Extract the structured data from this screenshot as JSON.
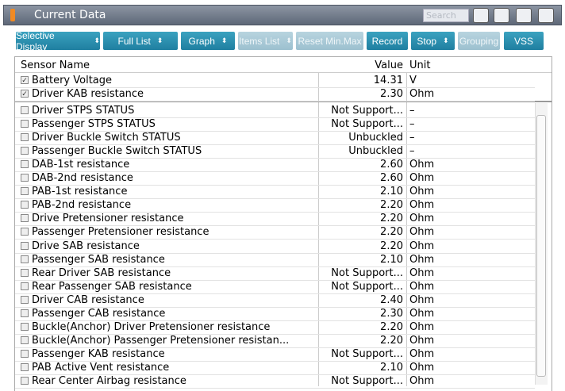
{
  "header": {
    "title": "Current Data",
    "search_placeholder": "Search"
  },
  "toolbar": [
    {
      "label": "Selective Display",
      "dropdown": true,
      "enabled": true
    },
    {
      "label": "Full List",
      "dropdown": true,
      "enabled": true
    },
    {
      "label": "Graph",
      "dropdown": true,
      "enabled": true
    },
    {
      "label": "Items List",
      "dropdown": true,
      "enabled": false
    },
    {
      "label": "Reset Min.Max",
      "dropdown": false,
      "enabled": false
    },
    {
      "label": "Record",
      "dropdown": false,
      "enabled": true
    },
    {
      "label": "Stop",
      "dropdown": true,
      "enabled": true
    },
    {
      "label": "Grouping",
      "dropdown": false,
      "enabled": false
    },
    {
      "label": "VSS",
      "dropdown": false,
      "enabled": true
    }
  ],
  "table": {
    "columns": [
      "Sensor Name",
      "Value",
      "Unit"
    ],
    "pinned_rows": [
      {
        "checked": true,
        "cells": [
          "Battery Voltage",
          "14.31",
          "V"
        ]
      },
      {
        "checked": true,
        "cells": [
          "Driver KAB resistance",
          "2.30",
          "Ohm"
        ]
      }
    ],
    "rows": [
      {
        "checked": false,
        "cells": [
          "Driver STPS STATUS",
          "Not Support...",
          "–"
        ]
      },
      {
        "checked": false,
        "cells": [
          "Passenger STPS STATUS",
          "Not Support...",
          "–"
        ]
      },
      {
        "checked": false,
        "cells": [
          "Driver Buckle Switch STATUS",
          "Unbuckled",
          "–"
        ]
      },
      {
        "checked": false,
        "cells": [
          "Passenger Buckle Switch STATUS",
          "Unbuckled",
          "–"
        ]
      },
      {
        "checked": false,
        "cells": [
          "DAB-1st resistance",
          "2.60",
          "Ohm"
        ]
      },
      {
        "checked": false,
        "cells": [
          "DAB-2nd resistance",
          "2.60",
          "Ohm"
        ]
      },
      {
        "checked": false,
        "cells": [
          "PAB-1st resistance",
          "2.10",
          "Ohm"
        ]
      },
      {
        "checked": false,
        "cells": [
          "PAB-2nd resistance",
          "2.20",
          "Ohm"
        ]
      },
      {
        "checked": false,
        "cells": [
          "Drive Pretensioner resistance",
          "2.20",
          "Ohm"
        ]
      },
      {
        "checked": false,
        "cells": [
          "Passenger Pretensioner resistance",
          "2.20",
          "Ohm"
        ]
      },
      {
        "checked": false,
        "cells": [
          "Drive SAB resistance",
          "2.20",
          "Ohm"
        ]
      },
      {
        "checked": false,
        "cells": [
          "Passenger SAB resistance",
          "2.10",
          "Ohm"
        ]
      },
      {
        "checked": false,
        "cells": [
          "Rear Driver SAB resistance",
          "Not Support...",
          "Ohm"
        ]
      },
      {
        "checked": false,
        "cells": [
          "Rear Passenger SAB resistance",
          "Not Support...",
          "Ohm"
        ]
      },
      {
        "checked": false,
        "cells": [
          "Driver CAB resistance",
          "2.40",
          "Ohm"
        ]
      },
      {
        "checked": false,
        "cells": [
          "Passenger CAB resistance",
          "2.30",
          "Ohm"
        ]
      },
      {
        "checked": false,
        "cells": [
          "Buckle(Anchor) Driver Pretensioner resistance",
          "2.20",
          "Ohm"
        ]
      },
      {
        "checked": false,
        "cells": [
          "Buckle(Anchor) Passenger Pretensioner resistan...",
          "2.20",
          "Ohm"
        ]
      },
      {
        "checked": false,
        "cells": [
          "Passenger KAB resistance",
          "Not Support...",
          "Ohm"
        ]
      },
      {
        "checked": false,
        "cells": [
          "PAB Active Vent resistance",
          "2.10",
          "Ohm"
        ]
      },
      {
        "checked": false,
        "cells": [
          "Rear Center Airbag resistance",
          "Not Support...",
          "Ohm"
        ]
      }
    ]
  }
}
